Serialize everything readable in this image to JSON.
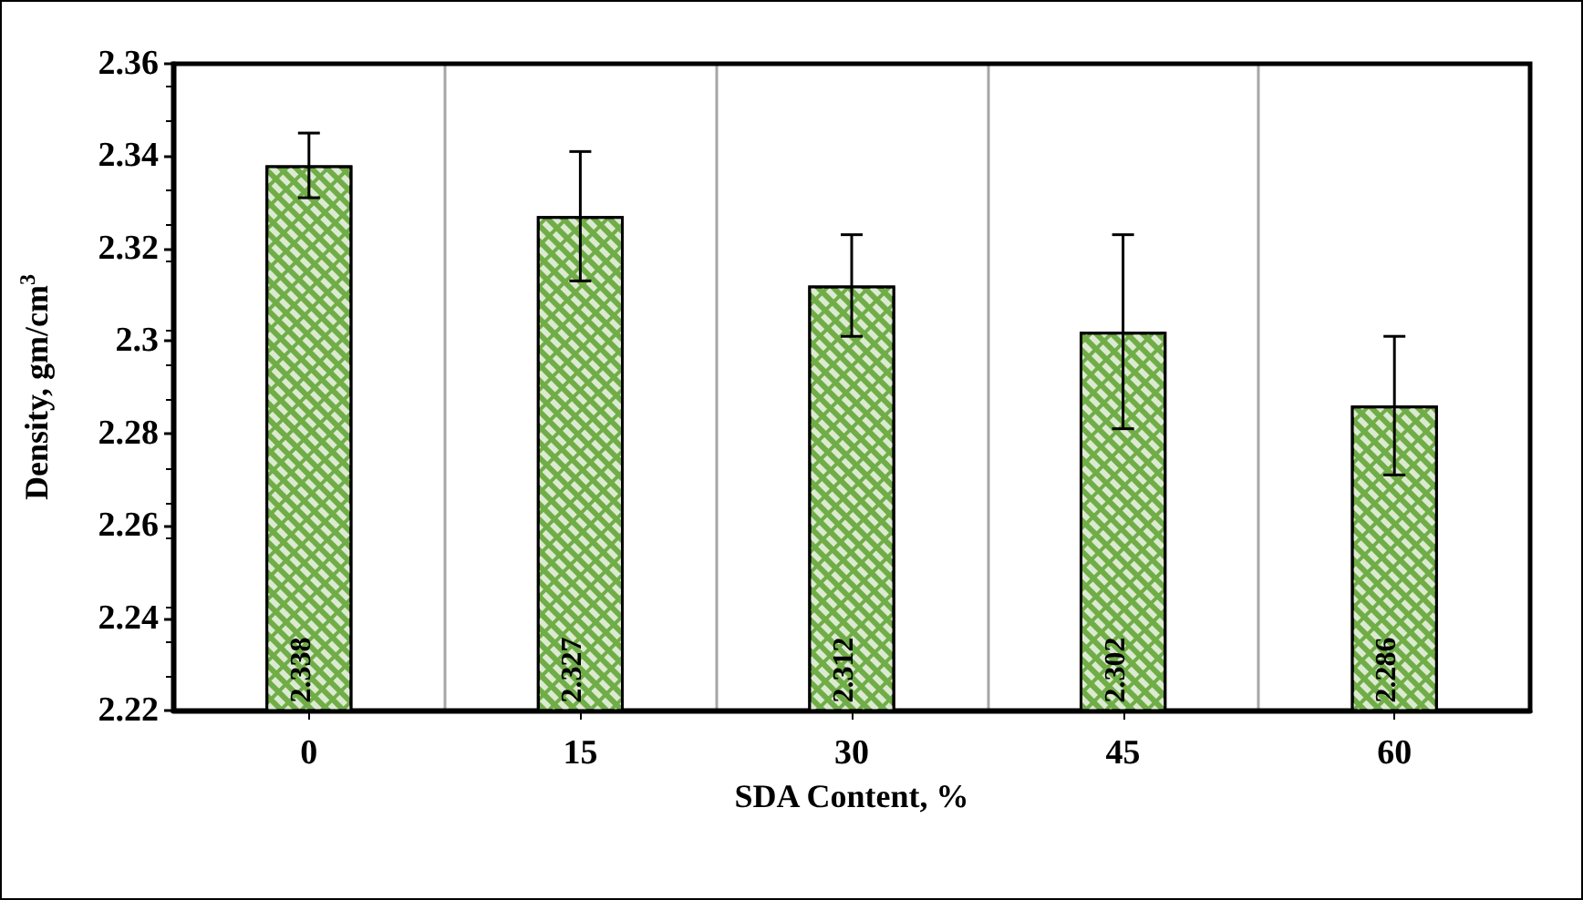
{
  "chart_data": {
    "type": "bar",
    "xlabel": "SDA Content, %",
    "ylabel": "Density, gm/cm$^{3}$",
    "categories": [
      "0",
      "15",
      "30",
      "45",
      "60"
    ],
    "values": [
      2.338,
      2.327,
      2.312,
      2.302,
      2.286
    ],
    "errors": [
      0.007,
      0.014,
      0.011,
      0.021,
      0.015
    ],
    "color": "#70ad47",
    "ylim": [
      2.22,
      2.36
    ],
    "yticks": [
      2.22,
      2.24,
      2.26,
      2.28,
      2.3,
      2.32,
      2.34,
      2.36
    ],
    "grid": "x",
    "data_labels": true
  }
}
